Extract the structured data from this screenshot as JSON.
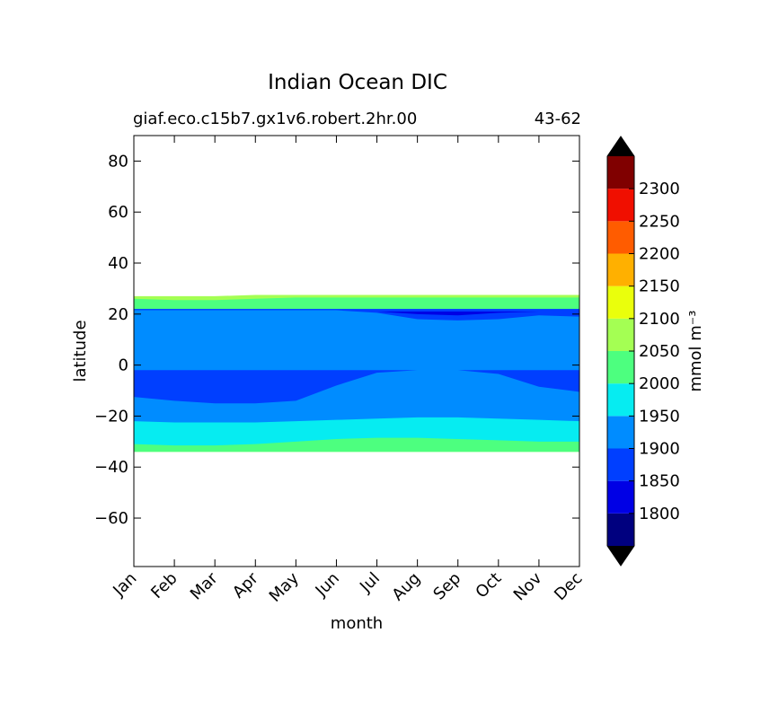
{
  "chart_data": {
    "type": "heatmap",
    "title": "Indian Ocean DIC",
    "subtitle_left": "giaf.eco.c15b7.gx1v6.robert.2hr.00",
    "subtitle_right": "43-62",
    "xlabel": "month",
    "ylabel": "latitude",
    "x_tick_labels": [
      "Jan",
      "Feb",
      "Mar",
      "Apr",
      "May",
      "Jun",
      "Jul",
      "Aug",
      "Sep",
      "Oct",
      "Nov",
      "Dec"
    ],
    "y_ticks": [
      -60,
      -40,
      -20,
      0,
      20,
      40,
      60,
      80
    ],
    "y_tick_labels": [
      "−60",
      "−40",
      "−20",
      "0",
      "20",
      "40",
      "60",
      "80"
    ],
    "xlim": [
      0,
      11
    ],
    "ylim": [
      -79,
      90
    ],
    "colorbar": {
      "label": "mmol m⁻³",
      "levels": [
        1750,
        1800,
        1850,
        1900,
        1950,
        2000,
        2050,
        2100,
        2150,
        2200,
        2250,
        2300,
        2350
      ],
      "tick_labels": [
        "1800",
        "1850",
        "1900",
        "1950",
        "2000",
        "2050",
        "2100",
        "2150",
        "2200",
        "2250",
        "2300"
      ],
      "colors": [
        "#00007f",
        "#0000e5",
        "#003fff",
        "#008cff",
        "#06ecf1",
        "#4dff7f",
        "#a4ff53",
        "#eaff0c",
        "#ffb000",
        "#ff5c00",
        "#f00f00",
        "#800000"
      ],
      "extend": "both",
      "extend_color": "#000000"
    },
    "regions": [
      {
        "value_class": 2050,
        "lat_min_series": [
          -34,
          -34,
          -34,
          -34,
          -34,
          -34,
          -34,
          -34,
          -34,
          -34,
          -34,
          -34
        ],
        "lat_max_series": [
          27,
          27,
          27,
          27.5,
          27.5,
          27.5,
          27.5,
          27.5,
          27.5,
          27.5,
          27.5,
          27.5
        ]
      },
      {
        "value_class": 2000,
        "lat_min_series": [
          -34,
          -34,
          -34,
          -34,
          -34,
          -34,
          -34,
          -34,
          -34,
          -34,
          -34,
          -34
        ],
        "lat_max_series": [
          26,
          25.5,
          25.5,
          26,
          26.5,
          26.5,
          26.5,
          26.5,
          26.5,
          26.5,
          26.5,
          26.5
        ]
      },
      {
        "value_class": 1950,
        "lat_min_series": [
          -31,
          -31.5,
          -31.5,
          -31,
          -30,
          -29,
          -28.5,
          -28.5,
          -29,
          -29.5,
          -30,
          -30
        ],
        "lat_max_series": [
          22,
          22,
          22,
          22,
          22,
          22,
          22,
          22,
          22,
          22,
          22,
          22
        ]
      },
      {
        "value_class": 1900,
        "lat_min_series": [
          -22,
          -22.5,
          -22.5,
          -22.5,
          -22,
          -21.5,
          -21,
          -20.5,
          -20.5,
          -21,
          -21.5,
          -22
        ],
        "lat_max_series": [
          22,
          22,
          22,
          22,
          22,
          22,
          22,
          22,
          22,
          22,
          22,
          22
        ]
      },
      {
        "value_class": 1850,
        "lat_min_series": [
          -12.5,
          -14,
          -15,
          -15,
          -14,
          -8,
          -3,
          -2,
          -2,
          -3.5,
          -8.5,
          -10.5
        ],
        "lat_max_series": [
          -2,
          -2,
          -2,
          -2,
          -2,
          -2,
          -2,
          -2,
          -2,
          -2,
          -2,
          -2
        ]
      },
      {
        "value_class": 1850,
        "lat_min_series": [
          21.5,
          21.5,
          21.5,
          21.5,
          21.5,
          21.5,
          20.5,
          18,
          17.5,
          18,
          19.5,
          19
        ],
        "lat_max_series": [
          22,
          22,
          22,
          22,
          22,
          22,
          22,
          22,
          22,
          22,
          22,
          22
        ]
      },
      {
        "value_class": 1800,
        "lat_min_series": [
          21,
          21,
          21,
          21,
          21,
          21,
          21,
          20,
          19.5,
          20.5,
          21,
          21
        ],
        "lat_max_series": [
          21,
          21,
          21,
          21,
          21,
          21,
          21,
          21,
          21,
          21,
          21,
          21
        ]
      }
    ]
  }
}
